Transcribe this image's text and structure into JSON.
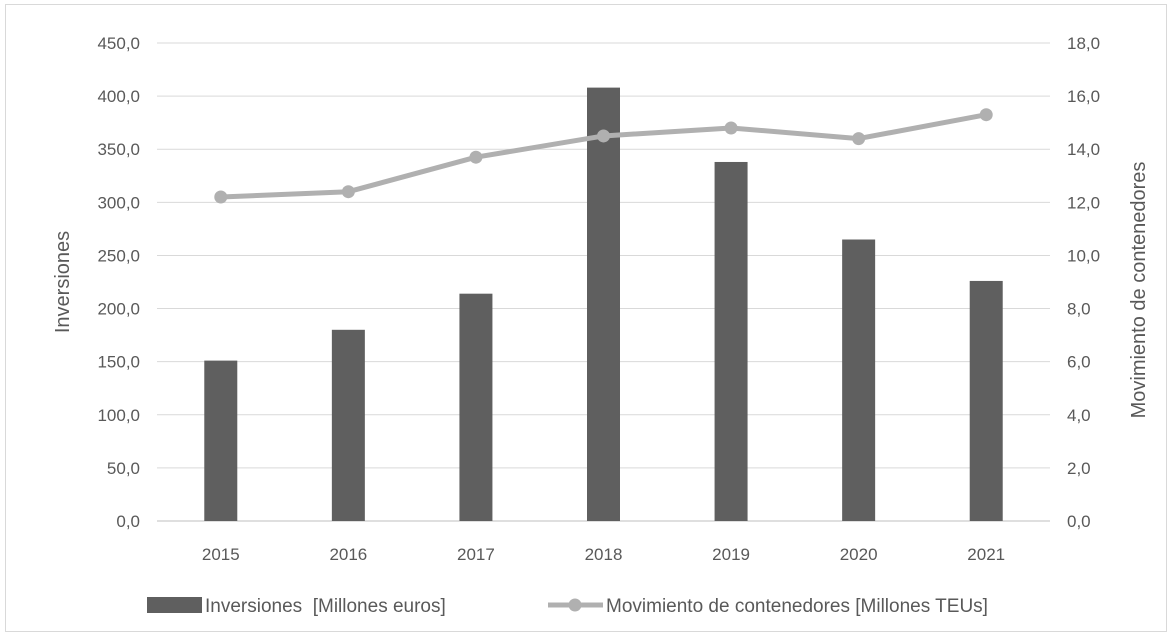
{
  "chart_data": {
    "type": "bar",
    "categories": [
      "2015",
      "2016",
      "2017",
      "2018",
      "2019",
      "2020",
      "2021"
    ],
    "series": [
      {
        "name": "Inversiones  [Millones euros]",
        "type": "bar",
        "axis": "left",
        "color": "#5f5f5f",
        "values": [
          151,
          180,
          214,
          408,
          338,
          265,
          226
        ]
      },
      {
        "name": "Movimiento de contenedores [Millones TEUs]",
        "type": "line",
        "axis": "right",
        "color": "#b0b0b0",
        "values": [
          12.2,
          12.4,
          13.7,
          14.5,
          14.8,
          14.4,
          15.3
        ]
      }
    ],
    "ylabel": "Inversiones",
    "y2label": "Movimiento de contenedores",
    "ylim": [
      0,
      450
    ],
    "y2lim": [
      0,
      18
    ],
    "yticks": [
      "0,0",
      "50,0",
      "100,0",
      "150,0",
      "200,0",
      "250,0",
      "300,0",
      "350,0",
      "400,0",
      "450,0"
    ],
    "y2ticks": [
      "0,0",
      "2,0",
      "4,0",
      "6,0",
      "8,0",
      "10,0",
      "12,0",
      "14,0",
      "16,0",
      "18,0"
    ],
    "grid": true,
    "legend_position": "bottom"
  }
}
